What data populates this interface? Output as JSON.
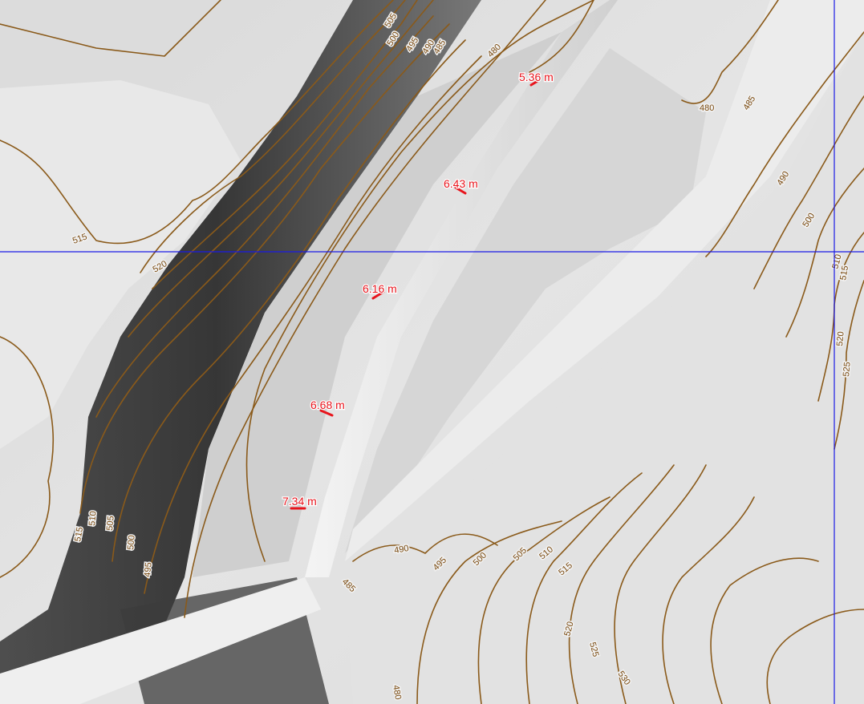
{
  "map": {
    "colors": {
      "contour": "#8a5a1a",
      "measurement": "#e8141c",
      "crosshair": "#1a1ae6",
      "hillshade_light": "#e9e9e9",
      "hillshade_dark": "#2a2a2a"
    },
    "measurements": [
      {
        "label": "5.36 m"
      },
      {
        "label": "6.43 m"
      },
      {
        "label": "6.16 m"
      },
      {
        "label": "6.68 m"
      },
      {
        "label": "7.34 m"
      }
    ],
    "contour_labels": [
      "505",
      "500",
      "495",
      "490",
      "485",
      "480",
      "480",
      "485",
      "490",
      "500",
      "510",
      "515",
      "520",
      "525",
      "515",
      "520",
      "515",
      "510",
      "505",
      "500",
      "495",
      "490",
      "485",
      "495",
      "500",
      "505",
      "510",
      "515",
      "520",
      "525",
      "530",
      "480"
    ]
  }
}
